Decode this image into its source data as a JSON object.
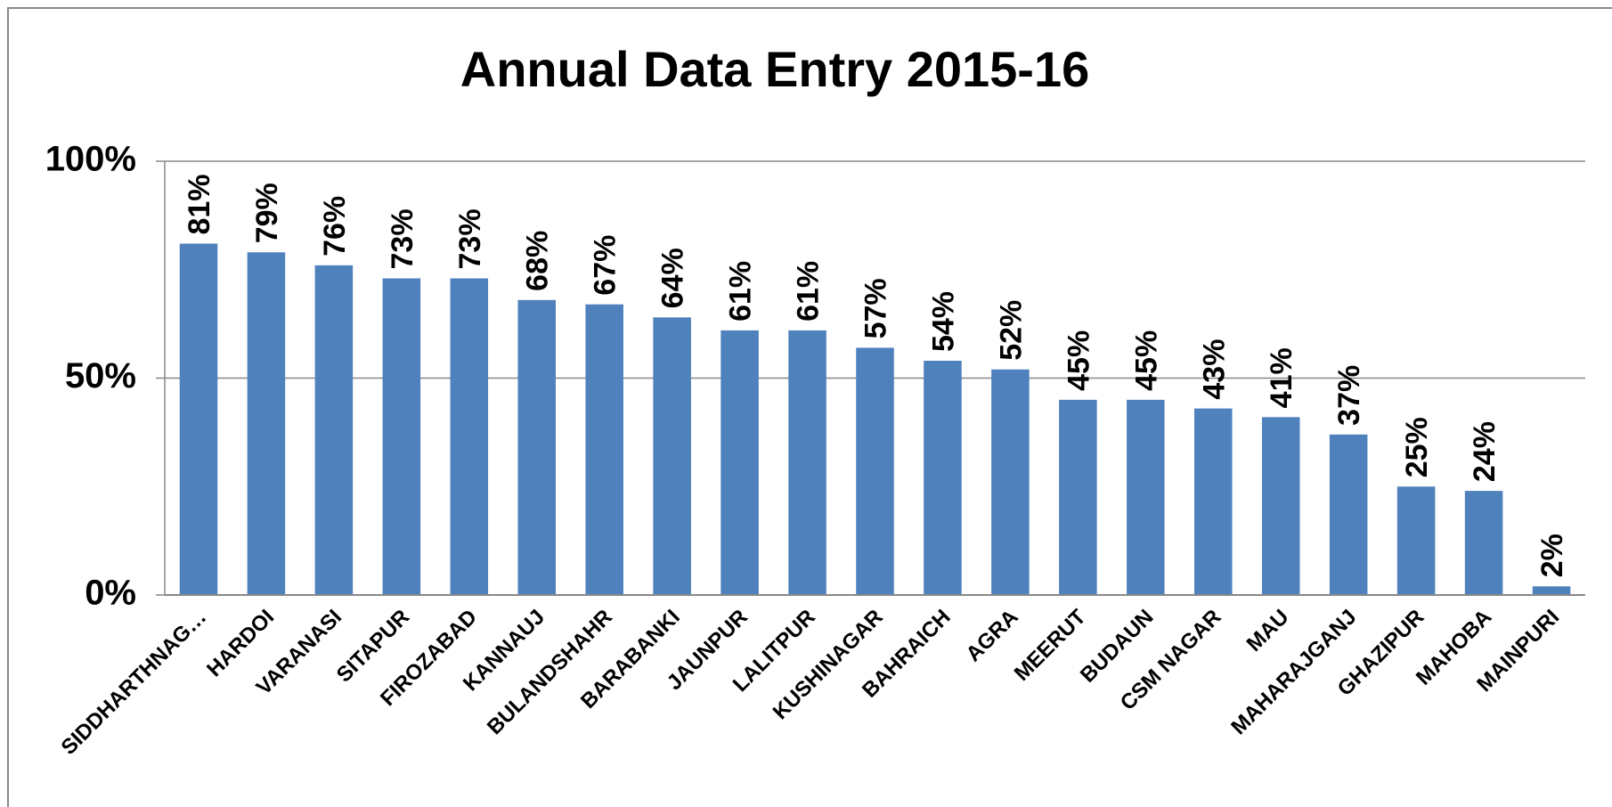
{
  "chart_data": {
    "type": "bar",
    "title": "Annual Data Entry 2015-16",
    "categories": [
      "SIDDHARTHNAG…",
      "HARDOI",
      "VARANASI",
      "SITAPUR",
      "FIROZABAD",
      "KANNAUJ",
      "BULANDSHAHR",
      "BARABANKI",
      "JAUNPUR",
      "LALITPUR",
      "KUSHINAGAR",
      "BAHRAICH",
      "AGRA",
      "MEERUT",
      "BUDAUN",
      "CSM NAGAR",
      "MAU",
      "MAHARAJGANJ",
      "GHAZIPUR",
      "MAHOBA",
      "MAINPURI"
    ],
    "values": [
      81,
      79,
      76,
      73,
      73,
      68,
      67,
      64,
      61,
      61,
      57,
      54,
      52,
      45,
      45,
      43,
      41,
      37,
      25,
      24,
      2
    ],
    "value_labels": [
      "81%",
      "79%",
      "76%",
      "73%",
      "73%",
      "68%",
      "67%",
      "64%",
      "61%",
      "61%",
      "57%",
      "54%",
      "52%",
      "45%",
      "45%",
      "43%",
      "41%",
      "37%",
      "25%",
      "24%",
      "2%"
    ],
    "color": "#4f81bd",
    "ylim": [
      0,
      100
    ],
    "yticks": [
      {
        "value": 0,
        "label": "0%"
      },
      {
        "value": 50,
        "label": "50%"
      },
      {
        "value": 100,
        "label": "100%"
      }
    ],
    "grid": true
  }
}
